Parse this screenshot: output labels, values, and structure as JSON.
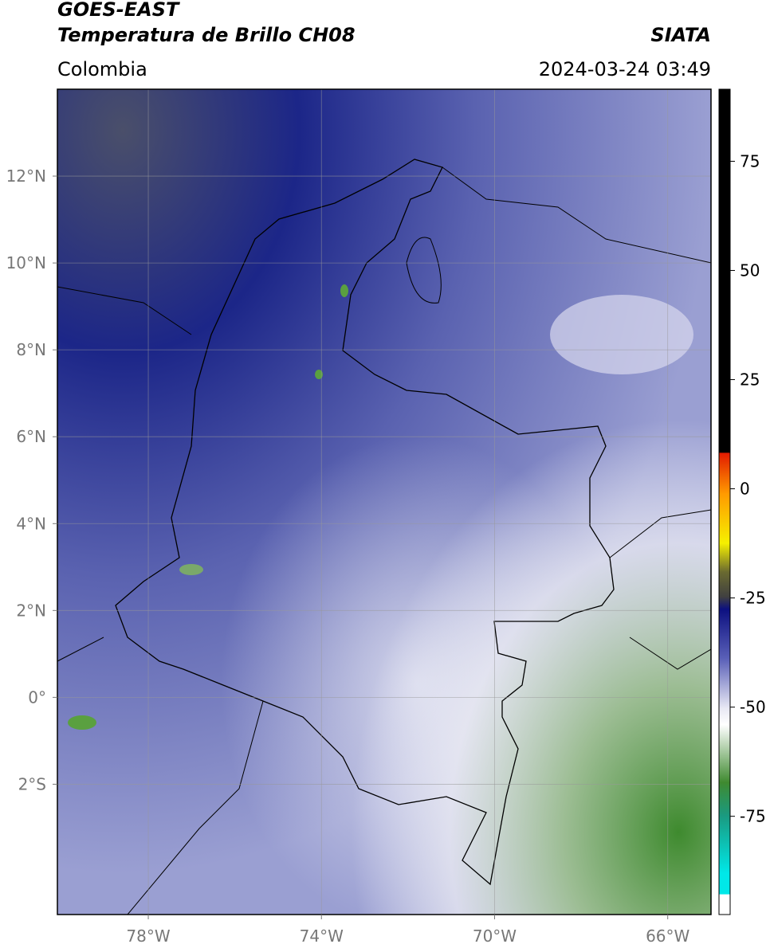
{
  "header": {
    "title": "GOES-EAST",
    "subtitle": "Temperatura de Brillo CH08",
    "source": "SIATA",
    "region": "Colombia",
    "timestamp": "2024-03-24 03:49"
  },
  "map": {
    "xlim": [
      -80.1,
      -65.0
    ],
    "ylim": [
      -5.0,
      14.0
    ],
    "xticks": [
      {
        "value": -78,
        "label": "78°W"
      },
      {
        "value": -74,
        "label": "74°W"
      },
      {
        "value": -70,
        "label": "70°W"
      },
      {
        "value": -66,
        "label": "66°W"
      }
    ],
    "yticks": [
      {
        "value": 12,
        "label": "12°N"
      },
      {
        "value": 10,
        "label": "10°N"
      },
      {
        "value": 8,
        "label": "8°N"
      },
      {
        "value": 6,
        "label": "6°N"
      },
      {
        "value": 4,
        "label": "4°N"
      },
      {
        "value": 2,
        "label": "2°N"
      },
      {
        "value": 0,
        "label": "0°"
      },
      {
        "value": -2,
        "label": "2°S"
      }
    ],
    "grid": true
  },
  "colorbar": {
    "lim": [
      -97.5,
      91.5
    ],
    "ticks": [
      75,
      50,
      25,
      0,
      -25,
      -50,
      -75
    ]
  }
}
